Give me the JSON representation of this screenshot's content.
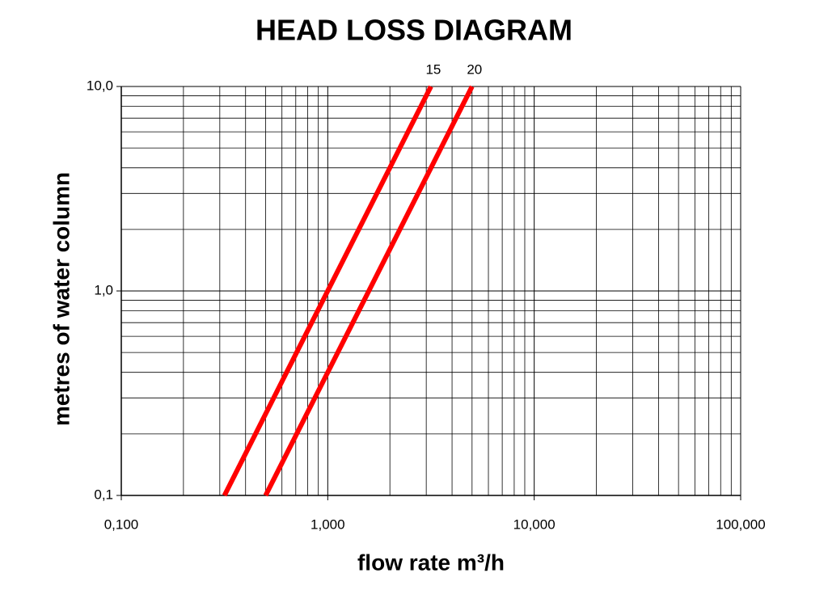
{
  "chart_data": {
    "type": "line",
    "title": "HEAD LOSS DIAGRAM",
    "x_label": "flow rate m³/h",
    "y_label": "metres of water column",
    "xscale": "log",
    "yscale": "log",
    "grid": true,
    "xlim": [
      0.1,
      100
    ],
    "ylim": [
      0.1,
      10
    ],
    "xticks": [
      {
        "value": 0.1,
        "label": "0,100"
      },
      {
        "value": 1,
        "label": "1,000"
      },
      {
        "value": 10,
        "label": "10,000"
      },
      {
        "value": 100,
        "label": "100,000"
      }
    ],
    "yticks": [
      {
        "value": 0.1,
        "label": "0,1"
      },
      {
        "value": 1,
        "label": "1,0"
      },
      {
        "value": 10,
        "label": "10,0"
      }
    ],
    "minor_xticks": [
      0.2,
      0.3,
      0.4,
      0.5,
      0.6,
      0.7,
      0.8,
      0.9,
      2,
      3,
      4,
      5,
      6,
      7,
      8,
      9,
      20,
      30,
      40,
      50,
      60,
      70,
      80,
      90
    ],
    "minor_yticks": [
      0.2,
      0.3,
      0.4,
      0.5,
      0.6,
      0.7,
      0.8,
      0.9,
      2,
      3,
      4,
      5,
      6,
      7,
      8,
      9
    ],
    "series": [
      {
        "name": "15",
        "color": "#ff0000",
        "x": [
          0.316,
          3.16
        ],
        "values": [
          0.1,
          10
        ]
      },
      {
        "name": "20",
        "color": "#ff0000",
        "x": [
          0.5,
          5.0
        ],
        "values": [
          0.1,
          10
        ]
      }
    ]
  }
}
